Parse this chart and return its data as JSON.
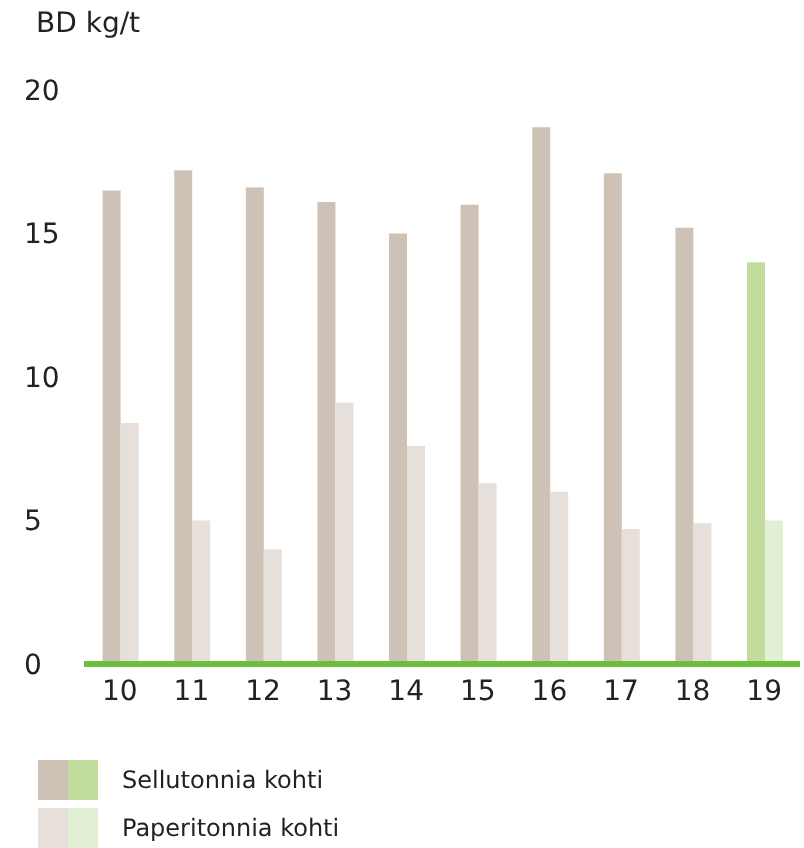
{
  "chart_data": {
    "type": "bar",
    "ylabel": "BD kg/t",
    "categories": [
      "10",
      "11",
      "12",
      "13",
      "14",
      "15",
      "16",
      "17",
      "18",
      "19"
    ],
    "series": [
      {
        "name": "Sellutonnia kohti",
        "colors": [
          "#cec2b6",
          "#cec2b6",
          "#cec2b6",
          "#cec2b6",
          "#cec2b6",
          "#cec2b6",
          "#cec2b6",
          "#cec2b6",
          "#cec2b6",
          "#c2dc9e"
        ],
        "values": [
          16.5,
          17.2,
          16.6,
          16.1,
          15.0,
          16.0,
          18.7,
          17.1,
          15.2,
          14.0
        ]
      },
      {
        "name": "Paperitonnia kohti",
        "colors": [
          "#e6dfda",
          "#e6dfda",
          "#e6dfda",
          "#e6dfda",
          "#e6dfda",
          "#e6dfda",
          "#e6dfda",
          "#e6dfda",
          "#e6dfda",
          "#e1efd2"
        ],
        "values": [
          8.4,
          5.0,
          4.0,
          9.1,
          7.6,
          6.3,
          6.0,
          4.7,
          4.9,
          5.0
        ]
      }
    ],
    "ylim": [
      0,
      20
    ],
    "yticks": [
      0,
      5,
      10,
      15,
      20
    ],
    "grid": false,
    "legend": "bottom"
  }
}
